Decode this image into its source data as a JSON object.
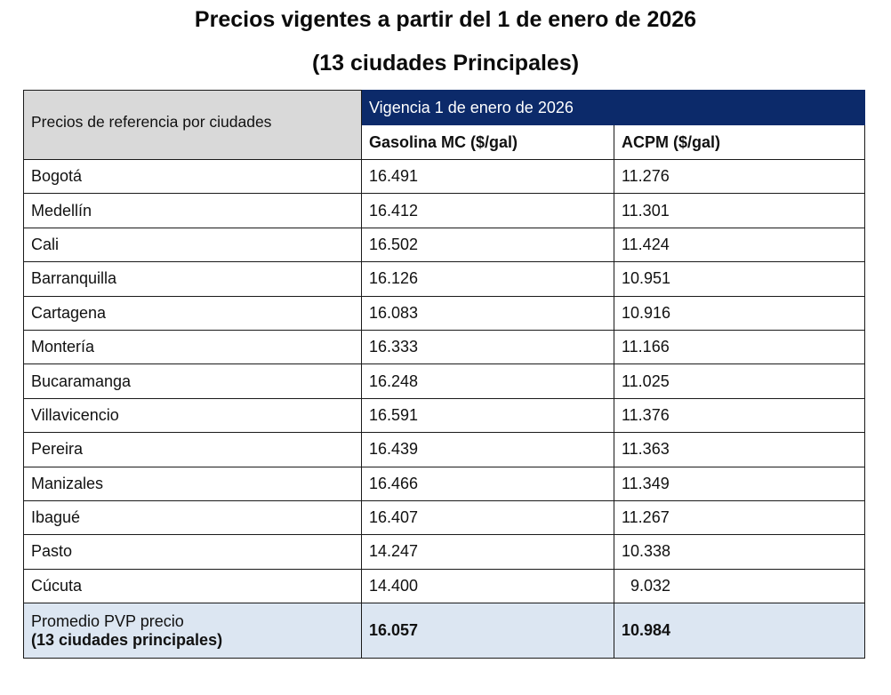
{
  "title_line1": "Precios vigentes a partir del 1 de enero de 2026",
  "title_line2": "(13 ciudades Principales)",
  "header": {
    "reference": "Precios de referencia por ciudades",
    "vigencia": "Vigencia 1 de enero de 2026",
    "col_gasolina": "Gasolina MC ($/gal)",
    "col_acpm": "ACPM ($/gal)"
  },
  "rows": [
    {
      "city": "Bogotá",
      "gasolina": "16.491",
      "acpm": "11.276"
    },
    {
      "city": "Medellín",
      "gasolina": "16.412",
      "acpm": "11.301"
    },
    {
      "city": "Cali",
      "gasolina": "16.502",
      "acpm": "11.424"
    },
    {
      "city": "Barranquilla",
      "gasolina": "16.126",
      "acpm": "10.951"
    },
    {
      "city": "Cartagena",
      "gasolina": "16.083",
      "acpm": "10.916"
    },
    {
      "city": "Montería",
      "gasolina": "16.333",
      "acpm": "11.166"
    },
    {
      "city": "Bucaramanga",
      "gasolina": "16.248",
      "acpm": "11.025"
    },
    {
      "city": "Villavicencio",
      "gasolina": "16.591",
      "acpm": "11.376"
    },
    {
      "city": "Pereira",
      "gasolina": "16.439",
      "acpm": "11.363"
    },
    {
      "city": "Manizales",
      "gasolina": "16.466",
      "acpm": "11.349"
    },
    {
      "city": "Ibagué",
      "gasolina": "16.407",
      "acpm": "11.267"
    },
    {
      "city": "Pasto",
      "gasolina": "14.247",
      "acpm": "10.338"
    },
    {
      "city": "Cúcuta",
      "gasolina": "14.400",
      "acpm": "9.032"
    }
  ],
  "average": {
    "label_line1": "Promedio PVP precio",
    "label_line2": "(13 ciudades principales)",
    "gasolina": "16.057",
    "acpm": "10.984"
  },
  "colors": {
    "vigencia_bg": "#0c2a6a",
    "reference_bg": "#d9d9d9",
    "average_bg": "#dce6f2"
  }
}
